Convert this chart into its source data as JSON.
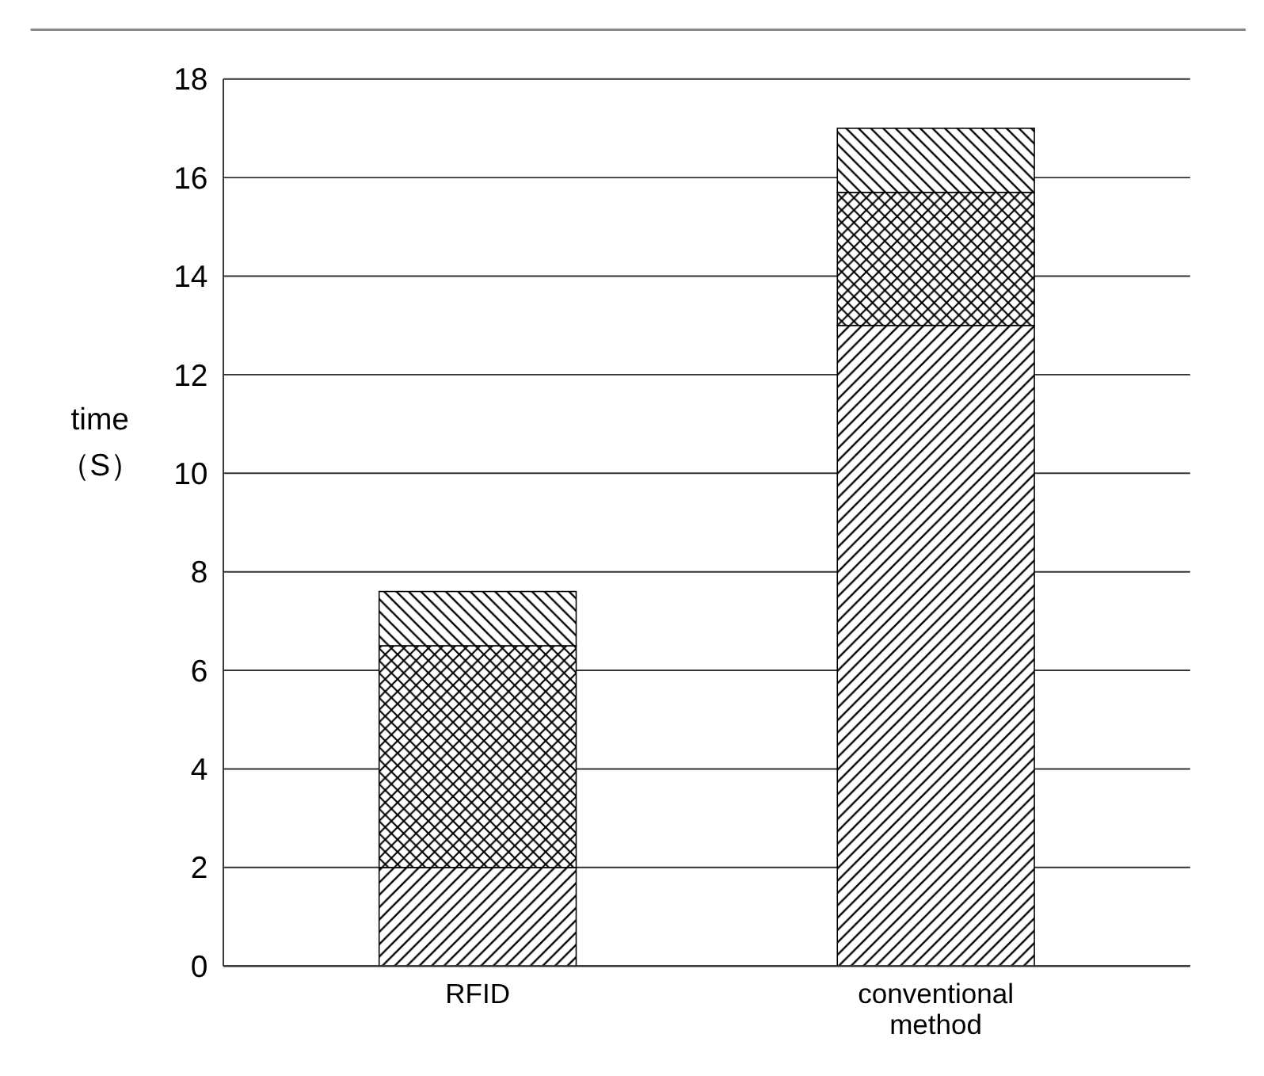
{
  "chart_data": {
    "type": "bar",
    "stacked": true,
    "ylabel": "time （S）",
    "categories": [
      "RFID",
      "conventional method"
    ],
    "series": [
      {
        "color": "#000000",
        "values": [
          2,
          13
        ]
      },
      {
        "color": "#000000",
        "values": [
          4.5,
          2.7
        ]
      },
      {
        "color": "#000000",
        "values": [
          1.1,
          1.3
        ]
      }
    ],
    "ylim": [
      0,
      18
    ],
    "yticks": [
      0,
      2,
      4,
      6,
      8,
      10,
      12,
      14,
      16,
      18
    ],
    "grid": "y"
  }
}
